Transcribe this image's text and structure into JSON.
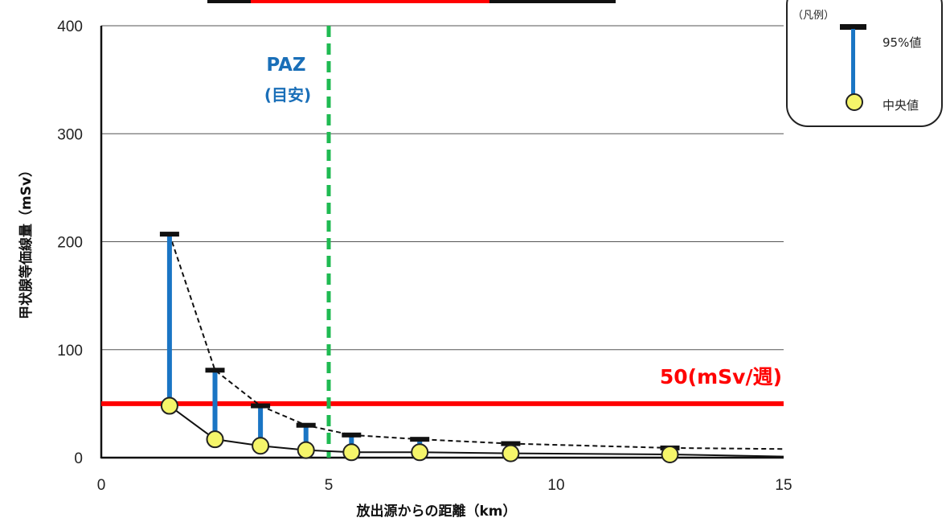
{
  "chart_data": {
    "type": "scatter",
    "xlabel": "放出源からの距離（km）",
    "ylabel": "甲状腺等価線量（mSv）",
    "xlim": [
      0,
      15
    ],
    "ylim": [
      0,
      400
    ],
    "xticks": [
      "0",
      "5",
      "10",
      "15"
    ],
    "yticks": [
      "0",
      "100",
      "200",
      "300",
      "400"
    ],
    "grid": "horizontal",
    "series": [
      {
        "name": "95%値",
        "x": [
          1.5,
          2.5,
          3.5,
          4.5,
          5.5,
          7.0,
          9.0,
          12.5
        ],
        "y": [
          207,
          81,
          48,
          30,
          21,
          17,
          13,
          9
        ]
      },
      {
        "name": "中央値",
        "x": [
          1.5,
          2.5,
          3.5,
          4.5,
          5.5,
          7.0,
          9.0,
          12.5
        ],
        "y": [
          48,
          17,
          11,
          7,
          5,
          5,
          4,
          3
        ]
      }
    ],
    "trend_95_extension": {
      "x": 15,
      "y": 8
    },
    "trend_median_extension": {
      "x": 15,
      "y": 1
    },
    "reference_lines": [
      {
        "type": "horizontal",
        "y": 50,
        "label": "50(mSv/週)",
        "color": "#ff0000"
      },
      {
        "type": "vertical",
        "x": 5,
        "label_line1": "PAZ",
        "label_line2": "(目安)",
        "color": "#1fba52"
      }
    ],
    "legend": {
      "title": "（凡例）",
      "upper_label": "95%値",
      "lower_label": "中央値",
      "position": "top-right"
    },
    "colors": {
      "bar": "#1a75c4",
      "cap": "#111111",
      "marker_fill": "#f5f56a",
      "marker_edge": "#222222"
    }
  }
}
